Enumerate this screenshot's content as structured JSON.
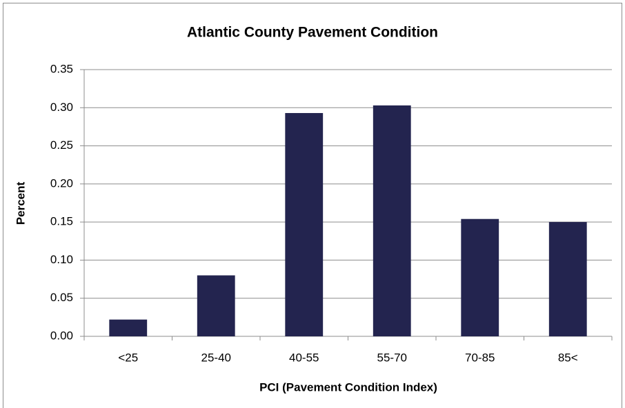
{
  "chart_data": {
    "type": "bar",
    "title": "Atlantic County Pavement Condition",
    "x_label": "PCI (Pavement Condition Index)",
    "y_label": "Percent",
    "categories": [
      "<25",
      "25-40",
      "40-55",
      "55-70",
      "70-85",
      "85<"
    ],
    "values": [
      0.022,
      0.08,
      0.293,
      0.303,
      0.154,
      0.15
    ],
    "color": "#23244f",
    "ylim": [
      0,
      0.35
    ],
    "yticks": [
      {
        "value": 0,
        "label": "0.00"
      },
      0.05,
      {
        "value": 0.1,
        "label": "0.10"
      },
      0.15,
      {
        "value": 0.2,
        "label": "0.20"
      },
      0.25,
      {
        "value": 0.3,
        "label": "0.30"
      },
      0.35
    ],
    "grid": true
  }
}
